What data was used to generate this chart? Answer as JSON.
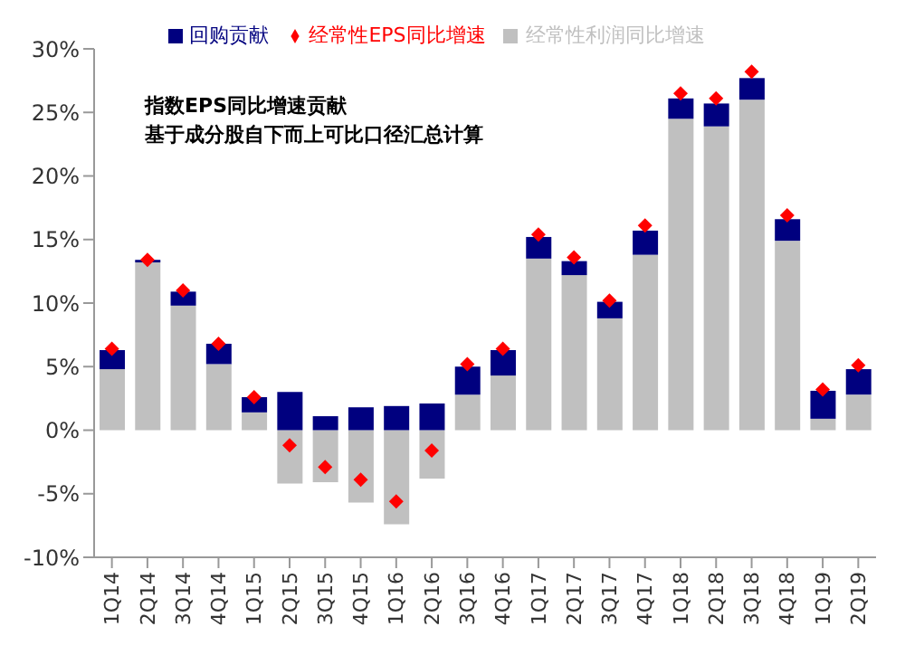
{
  "chart_data": {
    "type": "bar",
    "title": "指数EPS同比增速贡献",
    "subtitle": "基于成分股自下而上可比口径汇总计算",
    "categories": [
      "1Q14",
      "2Q14",
      "3Q14",
      "4Q14",
      "1Q15",
      "2Q15",
      "3Q15",
      "4Q15",
      "1Q16",
      "2Q16",
      "3Q16",
      "4Q16",
      "1Q17",
      "2Q17",
      "3Q17",
      "4Q17",
      "1Q18",
      "2Q18",
      "3Q18",
      "4Q18",
      "1Q19",
      "2Q19"
    ],
    "series": [
      {
        "name": "经常性利润同比增速",
        "color": "#c0c0c0",
        "values": [
          4.8,
          13.2,
          9.8,
          5.2,
          1.4,
          -4.2,
          -4.1,
          -5.7,
          -7.4,
          -3.8,
          2.8,
          4.3,
          13.5,
          12.2,
          8.8,
          13.8,
          24.5,
          23.9,
          26.0,
          14.9,
          0.9,
          2.8
        ]
      },
      {
        "name": "回购贡献",
        "color": "#00007f",
        "values": [
          1.5,
          0.2,
          1.1,
          1.6,
          1.2,
          3.0,
          1.1,
          1.8,
          1.9,
          2.1,
          2.2,
          2.0,
          1.7,
          1.1,
          1.3,
          1.9,
          1.6,
          1.8,
          1.7,
          1.7,
          2.2,
          2.0
        ]
      },
      {
        "name": "经常性EPS同比增速",
        "type": "scatter",
        "color": "#ff0000",
        "values": [
          6.4,
          13.4,
          11.0,
          6.8,
          2.6,
          -1.2,
          -2.9,
          -3.9,
          -5.6,
          -1.6,
          5.2,
          6.4,
          15.4,
          13.6,
          10.2,
          16.1,
          26.5,
          26.1,
          28.2,
          16.9,
          3.2,
          5.1
        ]
      }
    ],
    "stacked": true,
    "marker": "diamond",
    "legend": "top",
    "ylim": [
      -10,
      30
    ],
    "yticks": [
      {
        "value": -10,
        "label": "-10%"
      },
      {
        "value": -5,
        "label": "-5%"
      },
      {
        "value": 0,
        "label": "0%"
      },
      {
        "value": 5,
        "label": "5%"
      },
      {
        "value": 10,
        "label": "10%"
      },
      {
        "value": 15,
        "label": "15%"
      },
      {
        "value": 20,
        "label": "20%"
      },
      {
        "value": 25,
        "label": "25%"
      },
      {
        "value": 30,
        "label": "30%"
      }
    ]
  }
}
